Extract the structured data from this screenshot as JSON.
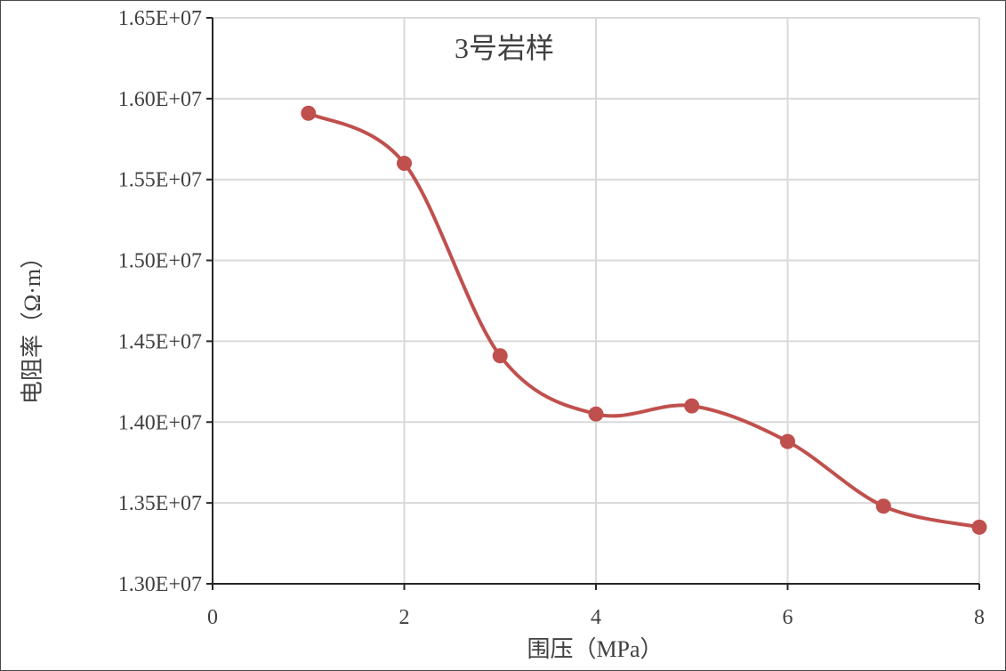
{
  "chart_data": {
    "type": "scatter",
    "annotation": "3号岩样",
    "xlabel": "围压（MPa）",
    "ylabel": "电阻率（Ω·m）",
    "xlim": [
      0,
      8
    ],
    "ylim": [
      13000000,
      16500000
    ],
    "x_ticks": [
      0,
      2,
      4,
      6,
      8
    ],
    "y_ticks": [
      13000000,
      13500000,
      14000000,
      14500000,
      15000000,
      15500000,
      16000000,
      16500000
    ],
    "x_tick_labels": [
      "0",
      "2",
      "4",
      "6",
      "8"
    ],
    "y_tick_labels": [
      "1.30E+07",
      "1.35E+07",
      "1.40E+07",
      "1.45E+07",
      "1.50E+07",
      "1.55E+07",
      "1.60E+07",
      "1.65E+07"
    ],
    "grid": true,
    "smooth_line": true,
    "series": [
      {
        "x": [
          1,
          2,
          3,
          4,
          5,
          6,
          7,
          8
        ],
        "y": [
          15910000,
          15600000,
          14410000,
          14050000,
          14100000,
          13880000,
          13480000,
          13350000
        ],
        "color": "#c0504d"
      }
    ]
  }
}
